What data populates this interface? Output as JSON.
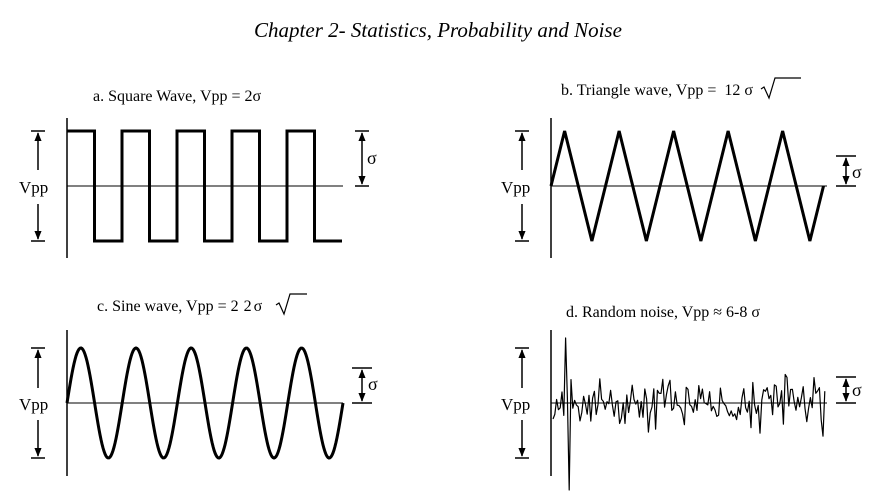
{
  "header": {
    "title": "Chapter 2- Statistics, Probability and Noise"
  },
  "labels": {
    "vpp": "Vpp",
    "sigma": "σ"
  },
  "panels": [
    {
      "id": "a",
      "title": "a.  Square Wave, Vpp = 2σ",
      "waveform": "square",
      "cycles": 5,
      "vpp_over_sigma": 2
    },
    {
      "id": "b",
      "title_before": "b. Triangle wave, Vpp = ",
      "title_radicand": "12",
      "title_after": "σ",
      "waveform": "triangle",
      "cycles": 5,
      "vpp_over_sigma": 3.464
    },
    {
      "id": "c",
      "title_before": "c. Sine wave, Vpp = 2",
      "title_radicand": "2",
      "title_after": "σ",
      "waveform": "sine",
      "cycles": 5,
      "vpp_over_sigma": 2.828
    },
    {
      "id": "d",
      "title": "d. Random noise, Vpp ≈ 6-8 σ",
      "waveform": "random-noise",
      "vpp_over_sigma": 7
    }
  ]
}
